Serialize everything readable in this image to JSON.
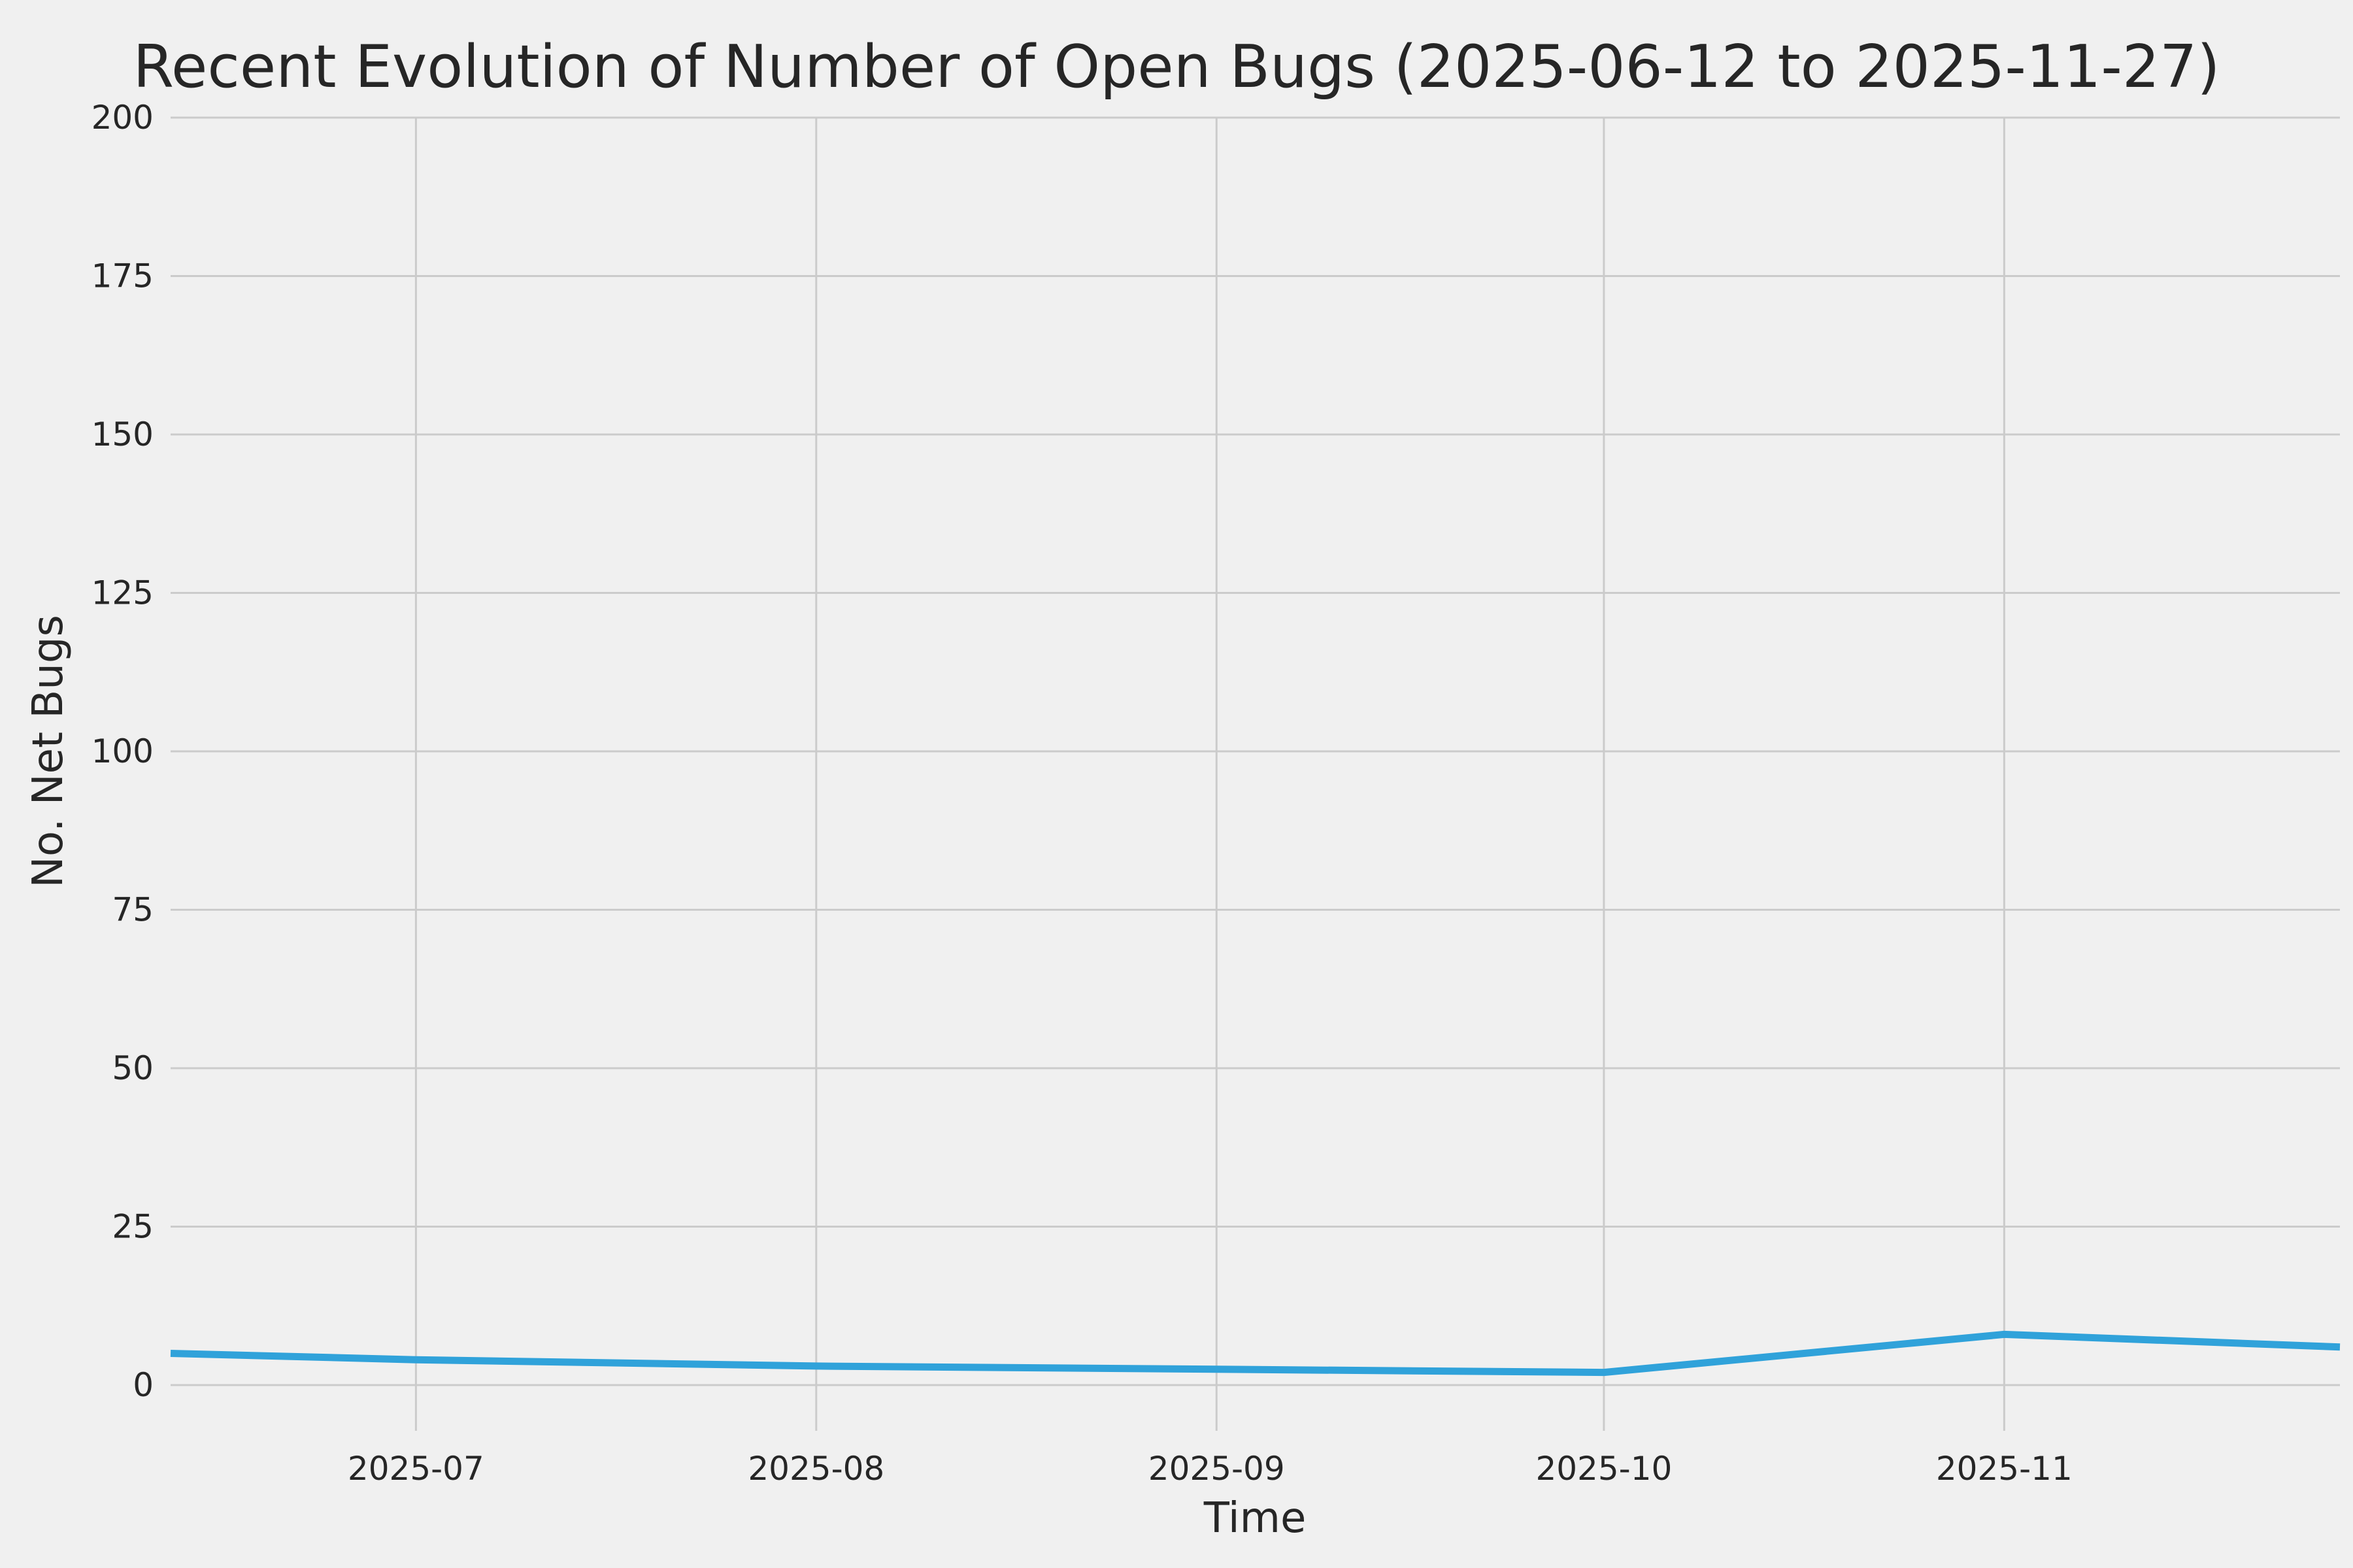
{
  "chart_data": {
    "type": "line",
    "title": "Recent Evolution of Number of Open Bugs (2025-06-12 to 2025-11-27)",
    "xlabel": "Time",
    "ylabel": "No. Net Bugs",
    "x": [
      "2025-06-12",
      "2025-07-01",
      "2025-08-01",
      "2025-09-01",
      "2025-10-01",
      "2025-11-01",
      "2025-11-27"
    ],
    "values": [
      5,
      4,
      3,
      2.5,
      2,
      8,
      6
    ],
    "series_name": "Open Bugs",
    "x_ticks": [
      {
        "date": "2025-07-01",
        "label": "2025-07"
      },
      {
        "date": "2025-08-01",
        "label": "2025-08"
      },
      {
        "date": "2025-09-01",
        "label": "2025-09"
      },
      {
        "date": "2025-10-01",
        "label": "2025-10"
      },
      {
        "date": "2025-11-01",
        "label": "2025-11"
      }
    ],
    "y_ticks": [
      0,
      25,
      50,
      75,
      100,
      125,
      150,
      175,
      200
    ],
    "ylim": [
      0,
      200
    ],
    "xlim": [
      "2025-06-12",
      "2025-11-27"
    ],
    "grid": true,
    "legend": "none",
    "line_color": "#30a2da",
    "background_color": "#f0f0f0",
    "grid_color": "#cbcbcb",
    "text_color": "#262626"
  }
}
